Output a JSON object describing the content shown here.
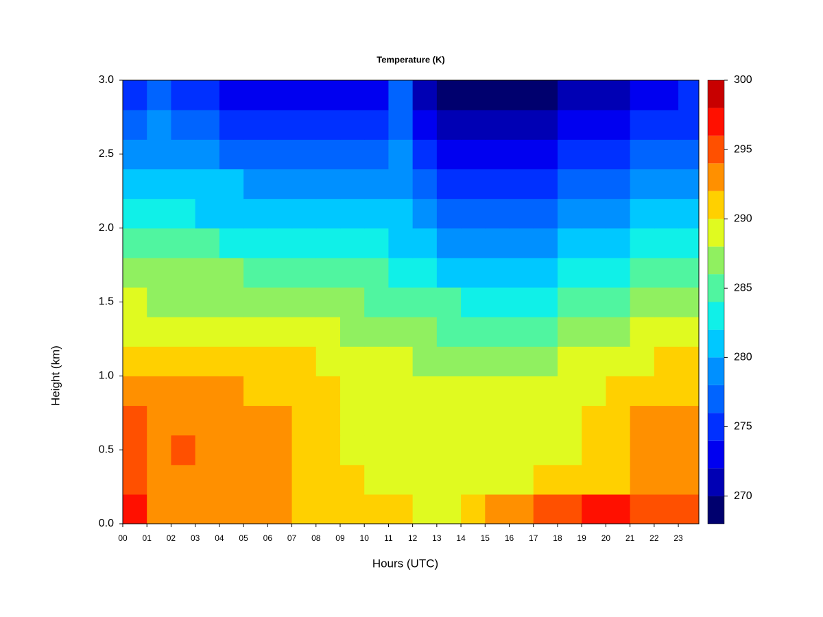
{
  "chart_data": {
    "type": "contour",
    "title": "Temperature (K)",
    "x_label": "Hours (UTC)",
    "y_label": "Height (km)",
    "xlim": [
      0,
      23.85
    ],
    "ylim": [
      0,
      3
    ],
    "xticks": [
      {
        "value": 0,
        "label": "00"
      },
      {
        "value": 1,
        "label": "01"
      },
      {
        "value": 2,
        "label": "02"
      },
      {
        "value": 3,
        "label": "03"
      },
      {
        "value": 4,
        "label": "04"
      },
      {
        "value": 5,
        "label": "05"
      },
      {
        "value": 6,
        "label": "06"
      },
      {
        "value": 7,
        "label": "07"
      },
      {
        "value": 8,
        "label": "08"
      },
      {
        "value": 9,
        "label": "09"
      },
      {
        "value": 10,
        "label": "10"
      },
      {
        "value": 11,
        "label": "11"
      },
      {
        "value": 12,
        "label": "12"
      },
      {
        "value": 13,
        "label": "13"
      },
      {
        "value": 14,
        "label": "14"
      },
      {
        "value": 15,
        "label": "15"
      },
      {
        "value": 16,
        "label": "16"
      },
      {
        "value": 17,
        "label": "17"
      },
      {
        "value": 18,
        "label": "18"
      },
      {
        "value": 19,
        "label": "19"
      },
      {
        "value": 20,
        "label": "20"
      },
      {
        "value": 21,
        "label": "21"
      },
      {
        "value": 22,
        "label": "22"
      },
      {
        "value": 23,
        "label": "23"
      }
    ],
    "yticks": [
      {
        "value": 0,
        "label": "0.0"
      },
      {
        "value": 0.5,
        "label": "0.5"
      },
      {
        "value": 1,
        "label": "1.0"
      },
      {
        "value": 1.5,
        "label": "1.5"
      },
      {
        "value": 2,
        "label": "2.0"
      },
      {
        "value": 2.5,
        "label": "2.5"
      },
      {
        "value": 3,
        "label": "3.0"
      }
    ],
    "zlim": [
      268,
      300
    ],
    "zticks": [
      270,
      275,
      280,
      285,
      290,
      295,
      300
    ],
    "levels": [
      268,
      270,
      272,
      274,
      276,
      278,
      280,
      282,
      284,
      286,
      288,
      290,
      292,
      294,
      296,
      298,
      300
    ],
    "colors": [
      "#00006e",
      "#0000b4",
      "#0000f0",
      "#0030ff",
      "#0064ff",
      "#0090ff",
      "#00c8ff",
      "#10f0e8",
      "#50f5a0",
      "#90f060",
      "#e0fa20",
      "#ffd000",
      "#ff9000",
      "#ff5000",
      "#ff1000",
      "#c80000",
      "#800000"
    ],
    "x": [
      0.5,
      1.5,
      2.5,
      3.5,
      4.5,
      5.5,
      6.5,
      7.5,
      8.5,
      9.5,
      10.5,
      11.5,
      12.5,
      13.5,
      14.5,
      15.5,
      16.5,
      17.5,
      18.5,
      19.5,
      20.5,
      21.5,
      22.5,
      23.5
    ],
    "y": [
      0.1,
      0.3,
      0.5,
      0.7,
      0.9,
      1.1,
      1.3,
      1.5,
      1.7,
      1.9,
      2.1,
      2.3,
      2.5,
      2.7,
      2.9
    ],
    "z": [
      [
        296,
        293,
        293,
        293,
        292,
        292,
        292,
        291,
        291,
        291,
        290,
        290,
        289,
        289,
        290,
        292,
        293,
        294,
        295,
        296,
        296,
        295,
        294,
        294
      ],
      [
        295,
        293,
        293,
        293,
        292,
        292,
        292,
        291,
        290,
        290,
        289,
        289,
        288,
        288,
        288,
        289,
        289,
        290,
        290,
        291,
        291,
        292,
        293,
        293
      ],
      [
        294,
        293,
        294,
        293,
        293,
        293,
        292,
        291,
        290,
        289,
        289,
        289,
        288,
        288,
        288,
        288,
        288,
        289,
        289,
        290,
        291,
        292,
        293,
        293
      ],
      [
        294,
        293,
        293,
        293,
        293,
        292,
        292,
        291,
        290,
        289,
        289,
        288,
        288,
        288,
        288,
        288,
        288,
        288,
        289,
        290,
        291,
        292,
        292,
        292
      ],
      [
        293,
        292,
        292,
        292,
        292,
        291,
        291,
        291,
        290,
        289,
        288,
        288,
        288,
        288,
        288,
        288,
        288,
        288,
        288,
        289,
        290,
        290,
        291,
        291
      ],
      [
        291,
        291,
        291,
        291,
        290,
        290,
        290,
        290,
        289,
        288,
        288,
        288,
        287,
        287,
        286,
        287,
        287,
        287,
        288,
        288,
        289,
        289,
        290,
        290
      ],
      [
        289,
        289,
        289,
        289,
        289,
        289,
        289,
        288,
        288,
        287,
        287,
        287,
        286,
        285,
        285,
        285,
        285,
        285,
        286,
        286,
        287,
        288,
        288,
        289
      ],
      [
        288,
        287,
        287,
        287,
        287,
        287,
        287,
        287,
        286,
        286,
        285,
        285,
        284,
        284,
        283,
        283,
        283,
        283,
        284,
        284,
        285,
        286,
        286,
        287
      ],
      [
        286,
        286,
        286,
        286,
        286,
        285,
        285,
        285,
        285,
        284,
        284,
        283,
        282,
        281,
        281,
        281,
        281,
        281,
        282,
        282,
        283,
        284,
        284,
        285
      ],
      [
        284,
        284,
        284,
        284,
        283,
        283,
        283,
        283,
        283,
        282,
        282,
        281,
        280,
        279,
        279,
        279,
        279,
        279,
        280,
        280,
        281,
        282,
        282,
        283
      ],
      [
        282,
        282,
        282,
        281,
        281,
        281,
        281,
        281,
        280,
        280,
        280,
        280,
        278,
        277,
        277,
        277,
        277,
        277,
        278,
        278,
        279,
        280,
        280,
        281
      ],
      [
        280,
        281,
        280,
        280,
        280,
        279,
        279,
        279,
        279,
        278,
        278,
        279,
        276,
        275,
        275,
        275,
        275,
        275,
        276,
        276,
        277,
        278,
        278,
        279
      ],
      [
        278,
        279,
        278,
        278,
        277,
        277,
        277,
        277,
        276,
        276,
        277,
        278,
        274,
        273,
        273,
        273,
        273,
        273,
        274,
        274,
        275,
        276,
        276,
        277
      ],
      [
        276,
        278,
        276,
        276,
        275,
        275,
        275,
        274,
        274,
        274,
        275,
        277,
        272,
        271,
        271,
        271,
        271,
        271,
        272,
        272,
        273,
        274,
        274,
        275
      ],
      [
        275,
        277,
        274,
        274,
        273,
        273,
        273,
        272,
        272,
        272,
        273,
        276,
        270,
        269,
        269,
        269,
        269,
        269,
        270,
        270,
        271,
        272,
        273,
        274
      ]
    ]
  }
}
